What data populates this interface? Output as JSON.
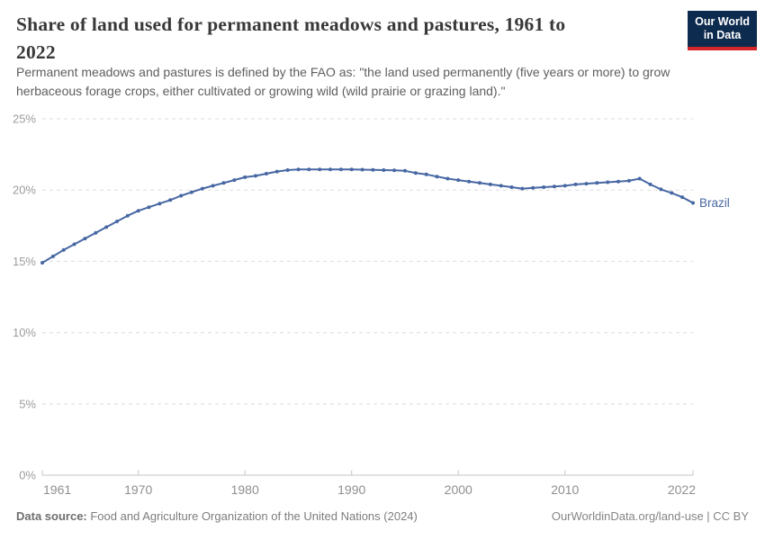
{
  "header": {
    "title_lines": [
      "Share of land used for permanent meadows and pastures, 1961 to",
      "2022"
    ],
    "subtitle_lines": [
      "Permanent meadows and pastures is defined by the FAO as: \"the land used permanently (five years or more) to grow",
      "herbaceous forage crops, either cultivated or growing wild (wild prairie or grazing land).\""
    ]
  },
  "logo": {
    "line1": "Our World",
    "line2": "in Data",
    "bg_color": "#0d2b4e",
    "accent_color": "#d2262b"
  },
  "footer": {
    "source_label": "Data source:",
    "source_text": " Food and Agriculture Organization of the United Nations (2024)",
    "right_text": "OurWorldinData.org/land-use | CC BY"
  },
  "chart_data": {
    "type": "line",
    "title": "Share of land used for permanent meadows and pastures, 1961 to 2022",
    "subtitle": "Permanent meadows and pastures is defined by the FAO as: \"the land used permanently (five years or more) to grow herbaceous forage crops, either cultivated or growing wild (wild prairie or grazing land).\"",
    "xlabel": "",
    "ylabel": "",
    "xlim": [
      1961,
      2022
    ],
    "ylim": [
      0,
      25
    ],
    "yticks": [
      0,
      5,
      10,
      15,
      20,
      25
    ],
    "ytick_suffix": "%",
    "xticks": [
      1961,
      1970,
      1980,
      1990,
      2000,
      2010,
      2022
    ],
    "grid": "dashed-horizontal",
    "legend_position": "end-of-line-label",
    "line_color": "#4767a3",
    "axis_color": "#c4c4c4",
    "gridline_color": "#dddddd",
    "tick_label_color": "#8f8f8f",
    "series": [
      {
        "name": "Brazil",
        "x": [
          1961,
          1962,
          1963,
          1964,
          1965,
          1966,
          1967,
          1968,
          1969,
          1970,
          1971,
          1972,
          1973,
          1974,
          1975,
          1976,
          1977,
          1978,
          1979,
          1980,
          1981,
          1982,
          1983,
          1984,
          1985,
          1986,
          1987,
          1988,
          1989,
          1990,
          1991,
          1992,
          1993,
          1994,
          1995,
          1996,
          1997,
          1998,
          1999,
          2000,
          2001,
          2002,
          2003,
          2004,
          2005,
          2006,
          2007,
          2008,
          2009,
          2010,
          2011,
          2012,
          2013,
          2014,
          2015,
          2016,
          2017,
          2018,
          2019,
          2020,
          2021,
          2022
        ],
        "y": [
          14.9,
          15.35,
          15.8,
          16.2,
          16.6,
          17.0,
          17.4,
          17.8,
          18.2,
          18.55,
          18.8,
          19.05,
          19.3,
          19.6,
          19.85,
          20.1,
          20.3,
          20.5,
          20.7,
          20.9,
          21.0,
          21.15,
          21.3,
          21.4,
          21.45,
          21.45,
          21.45,
          21.45,
          21.45,
          21.45,
          21.43,
          21.42,
          21.4,
          21.38,
          21.35,
          21.2,
          21.1,
          20.95,
          20.8,
          20.7,
          20.6,
          20.5,
          20.4,
          20.3,
          20.2,
          20.1,
          20.15,
          20.2,
          20.25,
          20.3,
          20.4,
          20.45,
          20.5,
          20.55,
          20.6,
          20.65,
          20.8,
          20.4,
          20.05,
          19.8,
          19.5,
          19.1
        ]
      }
    ]
  }
}
